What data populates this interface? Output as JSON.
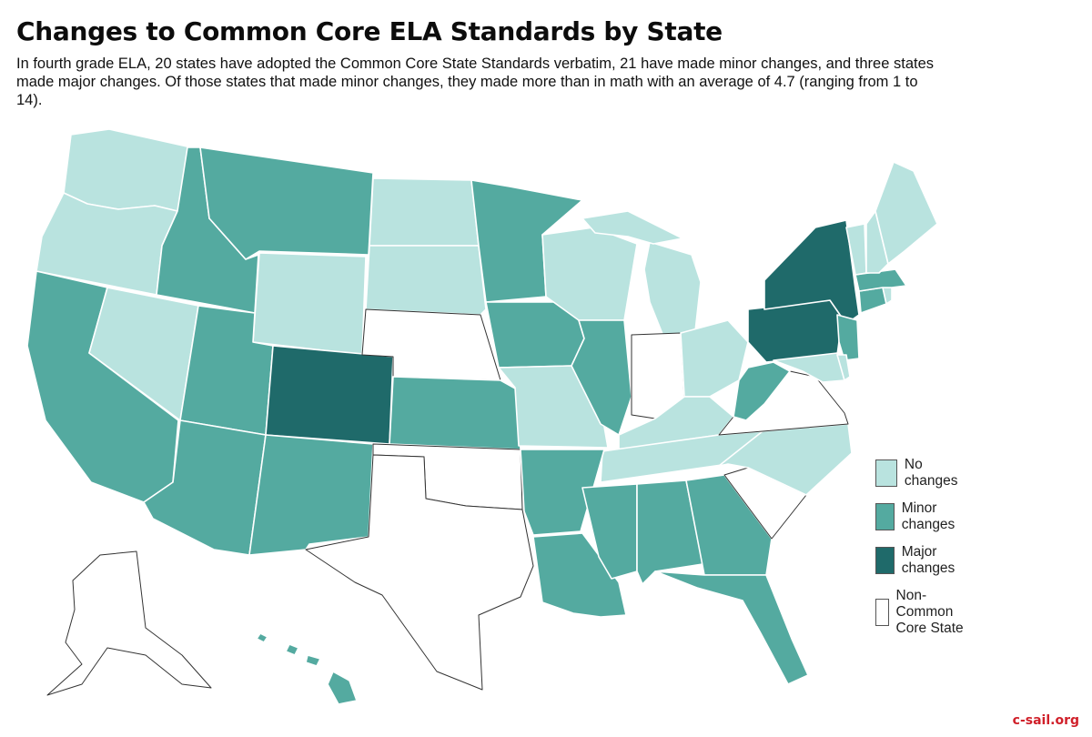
{
  "title": "Changes to Common Core ELA Standards by State",
  "subtitle": "In fourth grade ELA, 20 states have adopted the Common Core State Standards verbatim, 21 have made minor changes, and three states made major changes. Of those states that made minor changes, they made more than in math with an average of 4.7 (ranging from 1 to 14).",
  "credit": "c-sail.org",
  "colors": {
    "none": "#b9e3df",
    "minor": "#54aaa0",
    "major": "#1f6a6a",
    "noncc": "#ffffff",
    "border": "#ffffff",
    "outline": "#333333"
  },
  "legend": [
    {
      "key": "none",
      "label": "No changes"
    },
    {
      "key": "minor",
      "label": "Minor changes"
    },
    {
      "key": "major",
      "label": "Major changes"
    },
    {
      "key": "noncc",
      "label": "Non-Common Core State"
    }
  ],
  "states": {
    "WA": "none",
    "OR": "none",
    "NV": "none",
    "WY": "none",
    "ND": "none",
    "SD": "none",
    "WI": "none",
    "MI": "none",
    "OH": "none",
    "KY": "none",
    "TN": "none",
    "NC": "none",
    "ME": "none",
    "NH": "none",
    "VT": "none",
    "RI": "none",
    "DE": "none",
    "MD": "none",
    "DC": "none",
    "CA": "minor",
    "ID": "minor",
    "MT": "minor",
    "UT": "minor",
    "AZ": "minor",
    "NM": "minor",
    "KS": "minor",
    "MN": "minor",
    "IA": "minor",
    "IL": "minor",
    "AR": "minor",
    "LA": "minor",
    "MS": "minor",
    "AL": "minor",
    "GA": "minor",
    "FL": "minor",
    "WV": "minor",
    "NJ": "minor",
    "CT": "minor",
    "MA": "minor",
    "HI": "minor",
    "CO": "major",
    "NY": "major",
    "PA": "major",
    "NE": "noncc",
    "TX": "noncc",
    "OK": "noncc",
    "IN": "noncc",
    "VA": "noncc",
    "SC": "noncc",
    "AK": "noncc",
    "MO": "none"
  }
}
